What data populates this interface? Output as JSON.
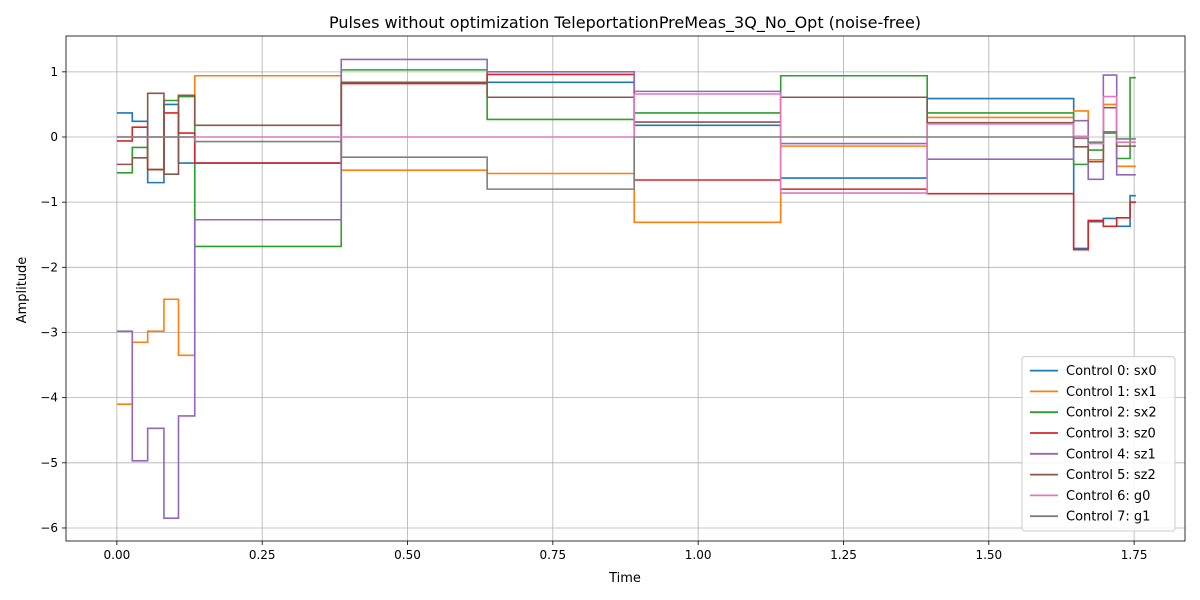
{
  "chart_data": {
    "type": "line",
    "step": "post",
    "title": "Pulses without optimization TeleportationPreMeas_3Q_No_Opt (noise-free)",
    "xlabel": "Time",
    "ylabel": "Amplitude",
    "xlim": [
      -0.0875,
      1.8375
    ],
    "ylim": [
      -6.2,
      1.55
    ],
    "xticks": [
      0.0,
      0.25,
      0.5,
      0.75,
      1.0,
      1.25,
      1.5,
      1.75
    ],
    "xtick_labels": [
      "0.00",
      "0.25",
      "0.50",
      "0.75",
      "1.00",
      "1.25",
      "1.50",
      "1.75"
    ],
    "yticks": [
      1,
      0,
      -1,
      -2,
      -3,
      -4,
      -5,
      -6
    ],
    "ytick_labels": [
      "1",
      "0",
      "−1",
      "−2",
      "−3",
      "−4",
      "−5",
      "−6"
    ],
    "grid": true,
    "legend_position": "lower-right",
    "x": [
      0.0,
      0.0265,
      0.053,
      0.081,
      0.106,
      0.134,
      0.386,
      0.637,
      0.89,
      1.142,
      1.394,
      1.646,
      1.671,
      1.697,
      1.72,
      1.743,
      1.753
    ],
    "series": [
      {
        "name": "Control 0: sx0",
        "color": "#1f77b4",
        "values": [
          0.37,
          0.24,
          -0.7,
          0.5,
          -0.4,
          -0.4,
          0.84,
          0.84,
          0.18,
          -0.63,
          0.59,
          -1.71,
          -1.3,
          -1.25,
          -1.37,
          -0.9,
          -0.9
        ]
      },
      {
        "name": "Control 1: sx1",
        "color": "#ff7f0e",
        "values": [
          -4.1,
          -3.15,
          -2.98,
          -2.49,
          -3.35,
          0.94,
          -0.51,
          -0.56,
          -1.31,
          -0.14,
          0.3,
          0.4,
          -0.35,
          0.5,
          -0.45,
          -0.45,
          -0.45
        ]
      },
      {
        "name": "Control 2: sx2",
        "color": "#2ca02c",
        "values": [
          -0.55,
          -0.16,
          -0.5,
          0.56,
          0.62,
          -1.68,
          1.03,
          0.27,
          0.37,
          0.94,
          0.37,
          -0.42,
          -0.2,
          0.06,
          -0.33,
          0.91,
          0.91
        ]
      },
      {
        "name": "Control 3: sz0",
        "color": "#d62728",
        "values": [
          -0.06,
          0.15,
          -0.5,
          0.37,
          0.06,
          -0.4,
          0.82,
          0.96,
          -0.66,
          -0.8,
          -0.87,
          -1.73,
          -1.28,
          -1.37,
          -1.24,
          -1.0,
          -1.0
        ]
      },
      {
        "name": "Control 4: sz1",
        "color": "#9467bd",
        "values": [
          -2.98,
          -4.97,
          -4.47,
          -5.85,
          -4.28,
          -1.27,
          1.19,
          1.0,
          0.7,
          -0.1,
          -0.34,
          0.25,
          -0.65,
          0.95,
          -0.58,
          -0.58,
          -0.58
        ]
      },
      {
        "name": "Control 5: sz2",
        "color": "#8c564b",
        "values": [
          -0.42,
          -0.32,
          0.67,
          -0.57,
          0.64,
          0.18,
          0.84,
          0.61,
          0.23,
          0.61,
          0.22,
          -0.15,
          -0.38,
          0.45,
          -0.14,
          -0.14,
          -0.14
        ]
      },
      {
        "name": "Control 6: g0",
        "color": "#e377c2",
        "values": [
          0.0,
          0.0,
          0.0,
          0.0,
          0.0,
          0.0,
          0.0,
          0.0,
          0.66,
          -0.86,
          0.2,
          0.01,
          -0.1,
          0.62,
          -0.08,
          -0.08,
          -0.08
        ]
      },
      {
        "name": "Control 7: g1",
        "color": "#7f7f7f",
        "values": [
          0.0,
          0.0,
          0.0,
          0.0,
          0.0,
          -0.07,
          -0.31,
          -0.8,
          0.0,
          0.0,
          0.0,
          -0.02,
          -0.08,
          0.08,
          -0.03,
          -0.03,
          -0.03
        ]
      }
    ]
  }
}
